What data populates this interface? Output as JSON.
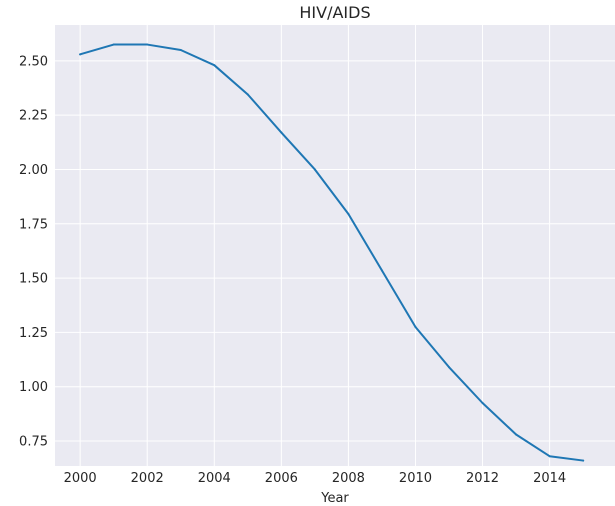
{
  "chart_data": {
    "type": "line",
    "title": "HIV/AIDS",
    "xlabel": "Year",
    "ylabel": "",
    "x": [
      2000,
      2001,
      2002,
      2003,
      2004,
      2005,
      2006,
      2007,
      2008,
      2009,
      2010,
      2011,
      2012,
      2013,
      2014,
      2015
    ],
    "series": [
      {
        "values": [
          2.53,
          2.575,
          2.575,
          2.55,
          2.48,
          2.345,
          2.17,
          2.0,
          1.795,
          1.535,
          1.275,
          1.09,
          0.925,
          0.78,
          0.68,
          0.66
        ]
      }
    ],
    "xlim": [
      1999.25,
      2015.95
    ],
    "ylim": [
      0.635,
      2.665
    ],
    "xticks": [
      "2000",
      "2002",
      "2004",
      "2006",
      "2008",
      "2010",
      "2012",
      "2014"
    ],
    "yticks": [
      "0.75",
      "1.00",
      "1.25",
      "1.50",
      "1.75",
      "2.00",
      "2.25",
      "2.50"
    ],
    "grid": true,
    "colors": {
      "line": "#1f77b4",
      "plot_background": "#eaeaf2",
      "grid": "#ffffff"
    }
  }
}
